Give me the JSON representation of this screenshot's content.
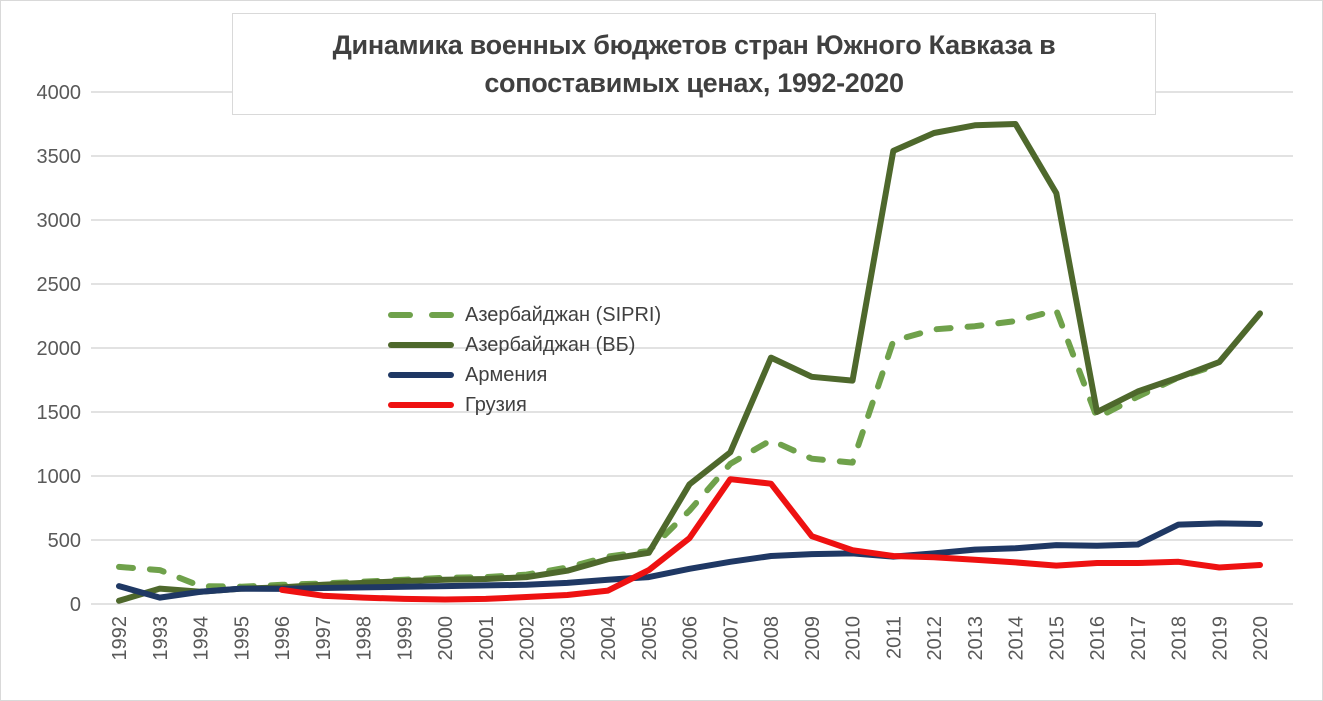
{
  "window": {
    "background": "#ffffff",
    "border_color": "#d9d9d9"
  },
  "title": {
    "line1": "Динамика военных бюджетов стран Южного Кавказа в",
    "line2": "сопоставимых ценах, 1992-2020"
  },
  "chart_data": {
    "type": "line",
    "title": "Динамика военных бюджетов стран Южного Кавказа в сопоставимых ценах, 1992-2020",
    "xlabel": "",
    "ylabel": "",
    "ylim": [
      0,
      4000
    ],
    "ytick_step": 500,
    "grid": "horizontal-only",
    "gridline_color": "#d9d9d9",
    "axis_label_color": "#595959",
    "legend_position": "inside-middle-left",
    "x": [
      1992,
      1993,
      1994,
      1995,
      1996,
      1997,
      1998,
      1999,
      2000,
      2001,
      2002,
      2003,
      2004,
      2005,
      2006,
      2007,
      2008,
      2009,
      2010,
      2011,
      2012,
      2013,
      2014,
      2015,
      2016,
      2017,
      2018,
      2019,
      2020
    ],
    "series": [
      {
        "name": "Азербайджан (SIPRI)",
        "color": "#6FA14B",
        "style": "dashed",
        "values": [
          290,
          265,
          140,
          135,
          150,
          160,
          175,
          190,
          205,
          210,
          230,
          285,
          370,
          415,
          730,
          1095,
          1280,
          1135,
          1105,
          2055,
          2145,
          2170,
          2210,
          2295,
          1455,
          1620,
          1770,
          1870,
          null
        ]
      },
      {
        "name": "Азербайджан (ВБ)",
        "color": "#4E682C",
        "style": "solid",
        "values": [
          25,
          120,
          95,
          120,
          130,
          150,
          165,
          180,
          190,
          195,
          210,
          260,
          350,
          400,
          935,
          1185,
          1925,
          1775,
          1745,
          3540,
          3680,
          3740,
          3750,
          3210,
          1500,
          1660,
          1770,
          1890,
          2270
        ]
      },
      {
        "name": "Армения",
        "color": "#1F3864",
        "style": "solid",
        "values": [
          140,
          50,
          95,
          120,
          118,
          125,
          130,
          135,
          140,
          145,
          150,
          165,
          190,
          210,
          275,
          330,
          375,
          390,
          395,
          370,
          395,
          425,
          435,
          460,
          455,
          465,
          620,
          630,
          625
        ]
      },
      {
        "name": "Грузия",
        "color": "#EE1111",
        "style": "solid",
        "values": [
          null,
          null,
          null,
          null,
          110,
          65,
          50,
          40,
          35,
          40,
          55,
          70,
          105,
          265,
          515,
          975,
          940,
          530,
          420,
          375,
          365,
          345,
          325,
          300,
          320,
          320,
          330,
          285,
          305
        ]
      }
    ]
  }
}
